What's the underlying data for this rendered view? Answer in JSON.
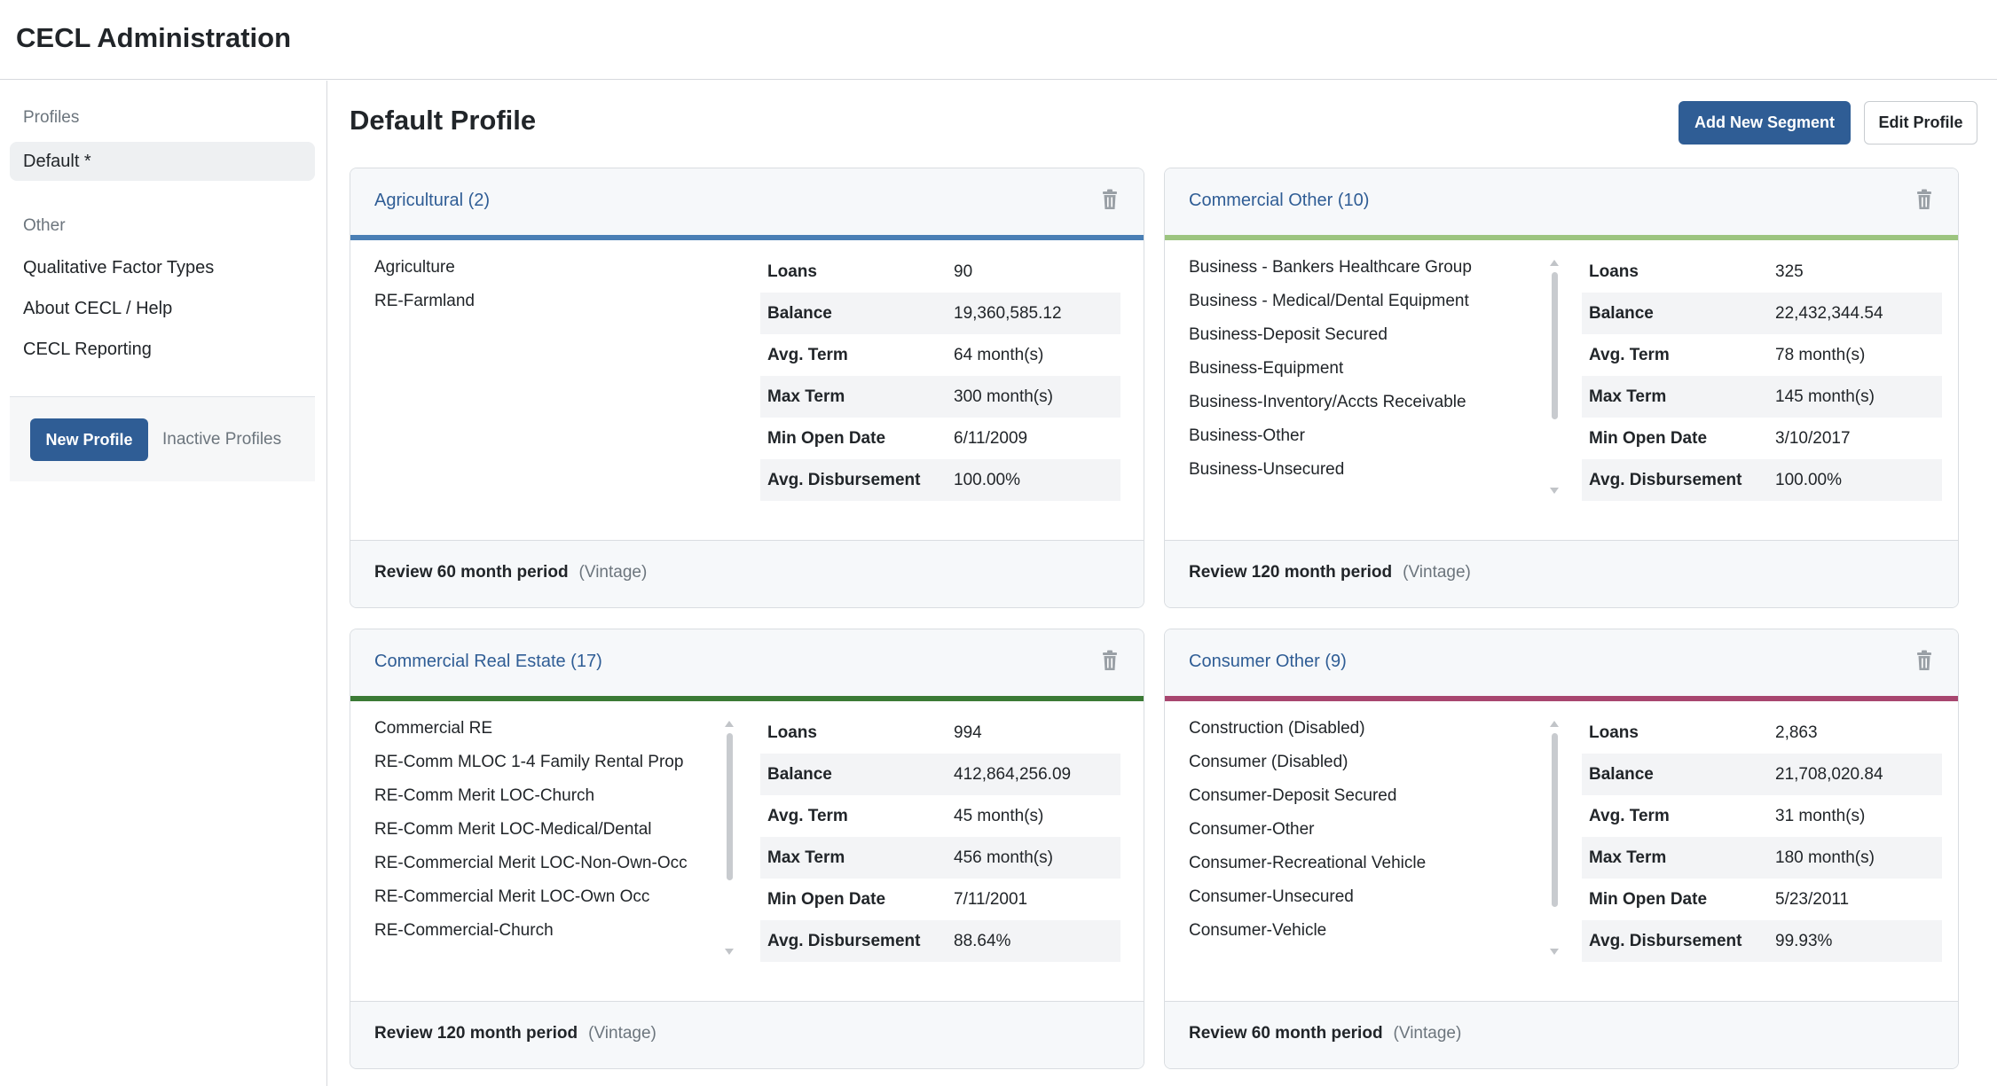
{
  "app": {
    "title": "CECL Administration"
  },
  "sidebar": {
    "profiles_heading": "Profiles",
    "active_profile": "Default *",
    "other_heading": "Other",
    "links": [
      "Qualitative Factor Types",
      "About CECL / Help",
      "CECL Reporting"
    ],
    "new_profile_label": "New Profile",
    "inactive_profiles_label": "Inactive Profiles"
  },
  "main": {
    "title": "Default Profile",
    "add_segment_label": "Add New Segment",
    "edit_profile_label": "Edit Profile"
  },
  "stat_labels": {
    "loans": "Loans",
    "balance": "Balance",
    "avg_term": "Avg. Term",
    "max_term": "Max Term",
    "min_open_date": "Min Open Date",
    "avg_disbursement": "Avg. Disbursement"
  },
  "colors": {
    "primary": "#2f5d95",
    "agricultural": "#4a7fb5",
    "commercial_other": "#9cc47f",
    "commercial_real_estate": "#3b7a35",
    "consumer_other": "#a8466f"
  },
  "segments": [
    {
      "title": "Agricultural (2)",
      "items": [
        "Agriculture",
        "RE-Farmland"
      ],
      "stats": {
        "loans": "90",
        "balance": "19,360,585.12",
        "avg_term": "64 month(s)",
        "max_term": "300 month(s)",
        "min_open_date": "6/11/2009",
        "avg_disbursement": "100.00%"
      },
      "review": "Review 60 month period",
      "method": "(Vintage)"
    },
    {
      "title": "Commercial Other (10)",
      "items": [
        "Business - Bankers Healthcare Group",
        "Business - Medical/Dental Equipment",
        "Business-Deposit Secured",
        "Business-Equipment",
        "Business-Inventory/Accts Receivable",
        "Business-Other",
        "Business-Unsecured"
      ],
      "stats": {
        "loans": "325",
        "balance": "22,432,344.54",
        "avg_term": "78 month(s)",
        "max_term": "145 month(s)",
        "min_open_date": "3/10/2017",
        "avg_disbursement": "100.00%"
      },
      "review": "Review 120 month period",
      "method": "(Vintage)"
    },
    {
      "title": "Commercial Real Estate (17)",
      "items": [
        "Commercial RE",
        "RE-Comm MLOC 1-4 Family Rental Prop",
        "RE-Comm Merit LOC-Church",
        "RE-Comm Merit LOC-Medical/Dental",
        "RE-Commercial Merit LOC-Non-Own-Occ",
        "RE-Commercial Merit LOC-Own Occ",
        "RE-Commercial-Church"
      ],
      "stats": {
        "loans": "994",
        "balance": "412,864,256.09",
        "avg_term": "45 month(s)",
        "max_term": "456 month(s)",
        "min_open_date": "7/11/2001",
        "avg_disbursement": "88.64%"
      },
      "review": "Review 120 month period",
      "method": "(Vintage)"
    },
    {
      "title": "Consumer Other (9)",
      "items": [
        "Construction (Disabled)",
        "Consumer (Disabled)",
        "Consumer-Deposit Secured",
        "Consumer-Other",
        "Consumer-Recreational Vehicle",
        "Consumer-Unsecured",
        "Consumer-Vehicle"
      ],
      "stats": {
        "loans": "2,863",
        "balance": "21,708,020.84",
        "avg_term": "31 month(s)",
        "max_term": "180 month(s)",
        "min_open_date": "5/23/2011",
        "avg_disbursement": "99.93%"
      },
      "review": "Review 60 month period",
      "method": "(Vintage)"
    }
  ]
}
